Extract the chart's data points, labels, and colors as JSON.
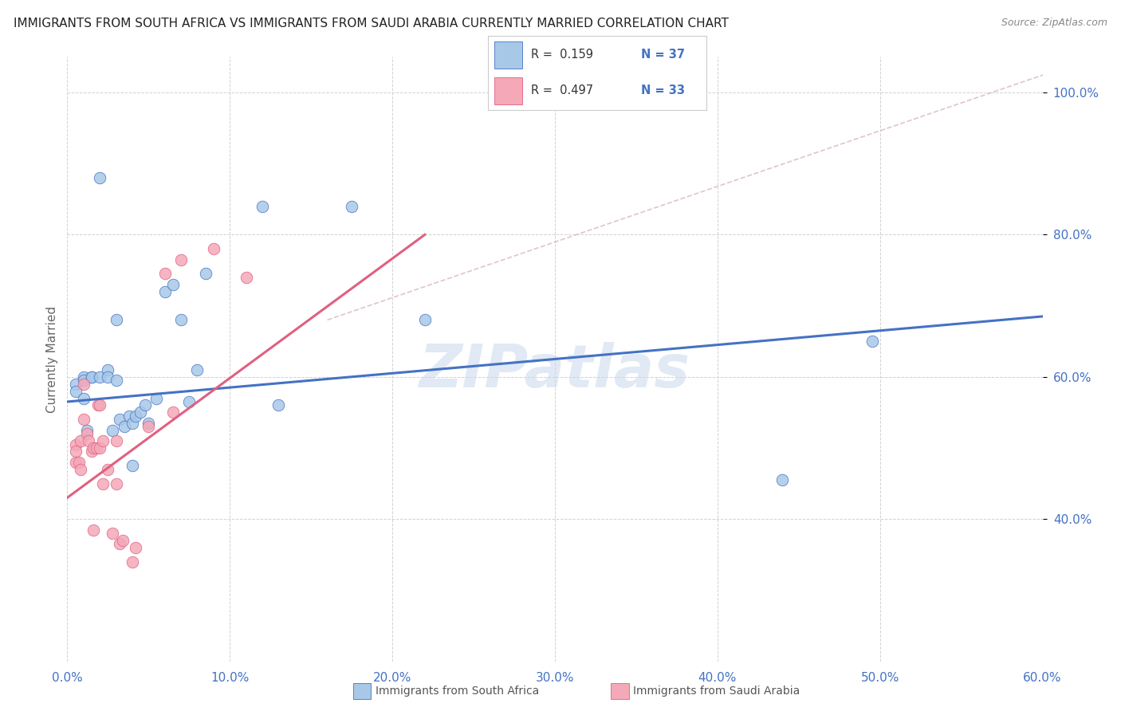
{
  "title": "IMMIGRANTS FROM SOUTH AFRICA VS IMMIGRANTS FROM SAUDI ARABIA CURRENTLY MARRIED CORRELATION CHART",
  "source": "Source: ZipAtlas.com",
  "ylabel_label": "Currently Married",
  "xlim": [
    0.0,
    0.6
  ],
  "ylim": [
    0.2,
    1.05
  ],
  "xtick_labels": [
    "0.0%",
    "10.0%",
    "20.0%",
    "30.0%",
    "40.0%",
    "50.0%",
    "60.0%"
  ],
  "xtick_vals": [
    0.0,
    0.1,
    0.2,
    0.3,
    0.4,
    0.5,
    0.6
  ],
  "ytick_labels": [
    "40.0%",
    "60.0%",
    "80.0%",
    "100.0%"
  ],
  "ytick_vals": [
    0.4,
    0.6,
    0.8,
    1.0
  ],
  "R_blue": 0.159,
  "N_blue": 37,
  "R_pink": 0.497,
  "N_pink": 33,
  "color_blue": "#a8c8e8",
  "color_pink": "#f4a8b8",
  "line_blue": "#4472c4",
  "line_pink": "#e06080",
  "line_diag_color": "#d8b0b8",
  "watermark": "ZIPatlas",
  "blue_scatter_x": [
    0.005,
    0.005,
    0.01,
    0.01,
    0.01,
    0.012,
    0.015,
    0.015,
    0.02,
    0.02,
    0.025,
    0.025,
    0.028,
    0.03,
    0.03,
    0.032,
    0.035,
    0.038,
    0.04,
    0.04,
    0.042,
    0.045,
    0.048,
    0.05,
    0.055,
    0.06,
    0.065,
    0.07,
    0.075,
    0.08,
    0.085,
    0.12,
    0.13,
    0.175,
    0.22,
    0.44,
    0.495
  ],
  "blue_scatter_y": [
    0.59,
    0.58,
    0.6,
    0.595,
    0.57,
    0.525,
    0.6,
    0.6,
    0.88,
    0.6,
    0.61,
    0.6,
    0.525,
    0.68,
    0.595,
    0.54,
    0.53,
    0.545,
    0.535,
    0.475,
    0.545,
    0.55,
    0.56,
    0.535,
    0.57,
    0.72,
    0.73,
    0.68,
    0.565,
    0.61,
    0.745,
    0.84,
    0.56,
    0.84,
    0.68,
    0.455,
    0.65
  ],
  "pink_scatter_x": [
    0.005,
    0.005,
    0.005,
    0.007,
    0.008,
    0.008,
    0.01,
    0.01,
    0.012,
    0.013,
    0.015,
    0.016,
    0.016,
    0.018,
    0.019,
    0.02,
    0.02,
    0.022,
    0.022,
    0.025,
    0.028,
    0.03,
    0.03,
    0.032,
    0.034,
    0.04,
    0.042,
    0.05,
    0.06,
    0.065,
    0.07,
    0.09,
    0.11
  ],
  "pink_scatter_y": [
    0.505,
    0.495,
    0.48,
    0.48,
    0.51,
    0.47,
    0.59,
    0.54,
    0.52,
    0.51,
    0.495,
    0.5,
    0.385,
    0.5,
    0.56,
    0.56,
    0.5,
    0.45,
    0.51,
    0.47,
    0.38,
    0.45,
    0.51,
    0.365,
    0.37,
    0.34,
    0.36,
    0.53,
    0.745,
    0.55,
    0.765,
    0.78,
    0.74
  ]
}
